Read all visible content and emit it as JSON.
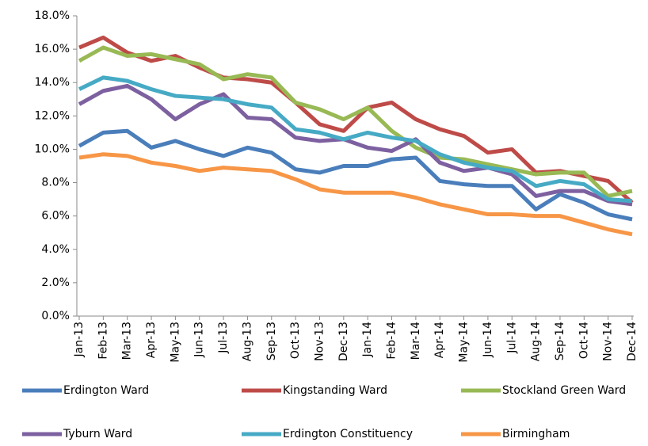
{
  "chart_data": {
    "type": "line",
    "categories": [
      "Jan-13",
      "Feb-13",
      "Mar-13",
      "Apr-13",
      "May-13",
      "Jun-13",
      "Jul-13",
      "Aug-13",
      "Sep-13",
      "Oct-13",
      "Nov-13",
      "Dec-13",
      "Jan-14",
      "Feb-14",
      "Mar-14",
      "Apr-14",
      "May-14",
      "Jun-14",
      "Jul-14",
      "Aug-14",
      "Sep-14",
      "Oct-14",
      "Nov-14",
      "Dec-14"
    ],
    "series": [
      {
        "name": "Erdington Ward",
        "color": "#4a7ebb",
        "values": [
          10.2,
          11.0,
          11.1,
          10.1,
          10.5,
          10.0,
          9.6,
          10.1,
          9.8,
          8.8,
          8.6,
          9.0,
          9.0,
          9.4,
          9.5,
          8.1,
          7.9,
          7.8,
          7.8,
          6.4,
          7.3,
          6.8,
          6.1,
          5.8
        ]
      },
      {
        "name": "Kingstanding Ward",
        "color": "#be4b48",
        "values": [
          16.1,
          16.7,
          15.8,
          15.3,
          15.6,
          14.9,
          14.3,
          14.2,
          14.0,
          12.8,
          11.5,
          11.1,
          12.5,
          12.8,
          11.8,
          11.2,
          10.8,
          9.8,
          10.0,
          8.6,
          8.7,
          8.4,
          8.1,
          6.8
        ]
      },
      {
        "name": "Stockland Green Ward",
        "color": "#98b954",
        "values": [
          15.3,
          16.1,
          15.6,
          15.7,
          15.4,
          15.1,
          14.2,
          14.5,
          14.3,
          12.8,
          12.4,
          11.8,
          12.5,
          11.1,
          10.1,
          9.5,
          9.4,
          9.1,
          8.8,
          8.5,
          8.6,
          8.6,
          7.2,
          7.5
        ]
      },
      {
        "name": "Tyburn Ward",
        "color": "#7d60a0",
        "values": [
          12.7,
          13.5,
          13.8,
          13.0,
          11.8,
          12.7,
          13.3,
          11.9,
          11.8,
          10.7,
          10.5,
          10.6,
          10.1,
          9.9,
          10.6,
          9.2,
          8.7,
          8.9,
          8.5,
          7.2,
          7.5,
          7.5,
          6.9,
          6.7
        ]
      },
      {
        "name": "Erdington Constituency",
        "color": "#46aac5",
        "values": [
          13.6,
          14.3,
          14.1,
          13.6,
          13.2,
          13.1,
          13.0,
          12.7,
          12.5,
          11.2,
          11.0,
          10.6,
          11.0,
          10.7,
          10.5,
          9.7,
          9.2,
          8.9,
          8.7,
          7.8,
          8.1,
          7.9,
          7.0,
          6.9
        ]
      },
      {
        "name": "Birmingham",
        "color": "#f79646",
        "values": [
          9.5,
          9.7,
          9.6,
          9.2,
          9.0,
          8.7,
          8.9,
          8.8,
          8.7,
          8.2,
          7.6,
          7.4,
          7.4,
          7.4,
          7.1,
          6.7,
          6.4,
          6.1,
          6.1,
          6.0,
          6.0,
          5.6,
          5.2,
          4.9
        ]
      }
    ],
    "ylim": [
      0,
      18
    ],
    "yticks": [
      {
        "value": 0,
        "label": "0.0%"
      },
      {
        "value": 2,
        "label": "2.0%"
      },
      {
        "value": 4,
        "label": "4.0%"
      },
      {
        "value": 6,
        "label": "6.0%"
      },
      {
        "value": 8,
        "label": "8.0%"
      },
      {
        "value": 10,
        "label": "10.0%"
      },
      {
        "value": 12,
        "label": "12.0%"
      },
      {
        "value": 14,
        "label": "14.0%"
      },
      {
        "value": 16,
        "label": "16.0%"
      },
      {
        "value": 18,
        "label": "18.0%"
      }
    ],
    "grid": false
  }
}
